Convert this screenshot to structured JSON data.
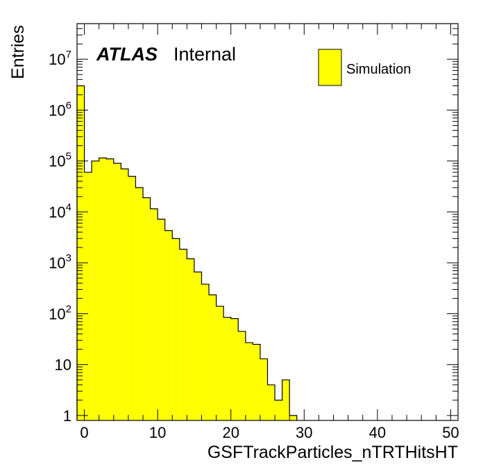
{
  "chart_data": {
    "type": "bar",
    "histogram": true,
    "xlabel": "GSFTrackParticles_nTRTHitsHT",
    "ylabel": "Entries",
    "xlim": [
      -1,
      51
    ],
    "ylim": [
      0.8,
      50000000
    ],
    "log_y": true,
    "bin_width": 1,
    "bin_start": -1,
    "values": [
      3000000,
      60000,
      100000,
      115000,
      110000,
      90000,
      70000,
      50000,
      30000,
      19000,
      11500,
      7200,
      4300,
      3000,
      1850,
      1200,
      660,
      380,
      235,
      140,
      85,
      80,
      45,
      27,
      25,
      13,
      4,
      2,
      5,
      1,
      0,
      0,
      0,
      0,
      0,
      0,
      0,
      0,
      0,
      0,
      0,
      0,
      0,
      0,
      0,
      0,
      0,
      0,
      0,
      0,
      0,
      0
    ],
    "fill_color": "#ffff00",
    "line_color": "#000000",
    "x_ticks": [
      "0",
      "10",
      "20",
      "30",
      "40",
      "50"
    ],
    "y_ticks": [
      "1",
      "10",
      "10^2",
      "10^3",
      "10^4",
      "10^5",
      "10^6",
      "10^7"
    ],
    "legend": {
      "entries": [
        {
          "name": "Simulation",
          "color": "#ffff00"
        }
      ],
      "placement": "top-right"
    },
    "annotation": {
      "brand": "ATLAS",
      "status": "Internal"
    }
  }
}
